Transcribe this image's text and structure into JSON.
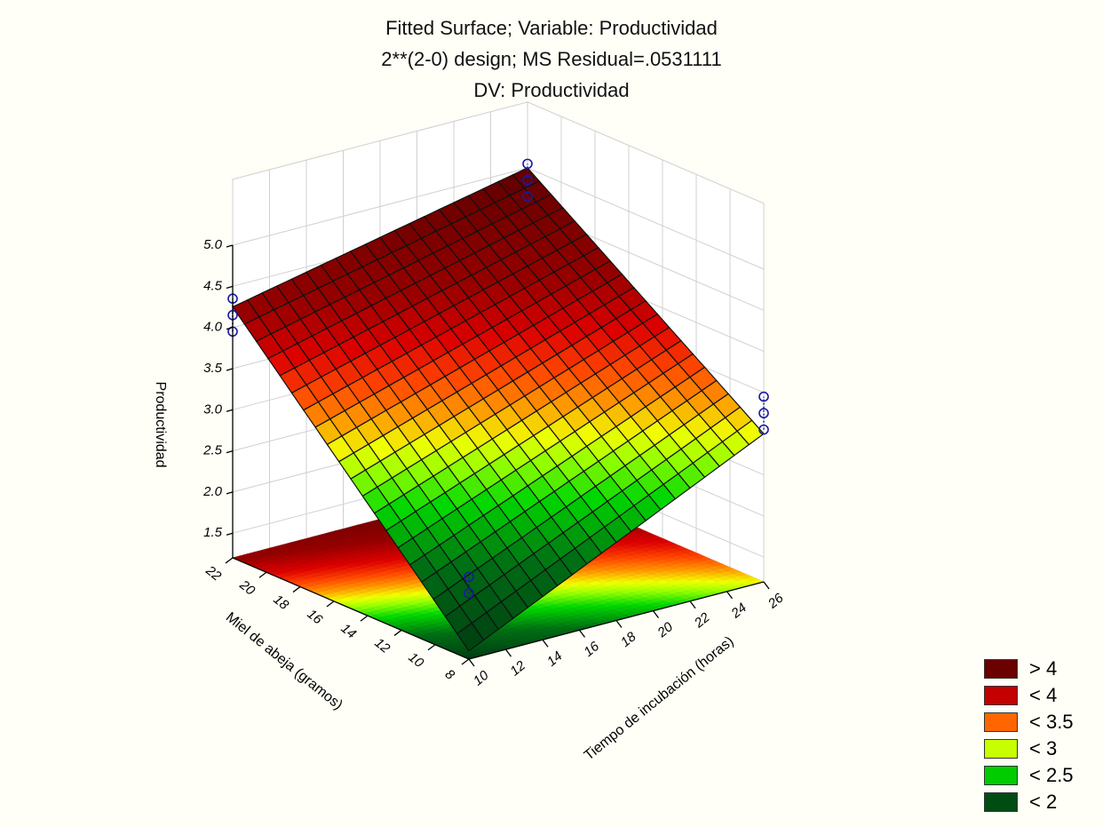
{
  "chart_data": {
    "type": "surface",
    "title": "Fitted Surface; Variable: Productividad",
    "subtitle": "2**(2-0) design; MS Residual=.0531111",
    "subtitle2": "DV: Productividad",
    "xlabel": "Tiempo de incubación (horas)",
    "ylabel": "Miel de abeja (gramos)",
    "zlabel": "Productividad",
    "x_ticks": [
      "10",
      "12",
      "14",
      "16",
      "18",
      "20",
      "22",
      "24",
      "26"
    ],
    "y_ticks": [
      "8",
      "10",
      "12",
      "14",
      "16",
      "18",
      "20",
      "22"
    ],
    "z_ticks": [
      "1.5",
      "2.0",
      "2.5",
      "3.0",
      "3.5",
      "4.0",
      "4.5",
      "5.0"
    ],
    "xlim": [
      10,
      26
    ],
    "ylim": [
      8,
      22
    ],
    "zlim": [
      1.2,
      5.0
    ],
    "surface_corners": [
      {
        "x": 10,
        "y": 8,
        "z": 1.3
      },
      {
        "x": 26,
        "y": 8,
        "z": 3.0
      },
      {
        "x": 10,
        "y": 22,
        "z": 4.25
      },
      {
        "x": 26,
        "y": 22,
        "z": 5.0
      }
    ],
    "observations": [
      {
        "x": 10,
        "y": 8,
        "z": [
          2.0,
          2.2
        ]
      },
      {
        "x": 26,
        "y": 8,
        "z": [
          3.05,
          3.25,
          3.45
        ]
      },
      {
        "x": 10,
        "y": 22,
        "z": [
          3.95,
          4.15,
          4.35
        ]
      },
      {
        "x": 26,
        "y": 22,
        "z": [
          4.65,
          4.85,
          5.05
        ]
      }
    ],
    "legend": [
      {
        "label": "> 4",
        "color": "#6b0000"
      },
      {
        "label": "< 4",
        "color": "#c40000"
      },
      {
        "label": "< 3.5",
        "color": "#ff6600"
      },
      {
        "label": "< 3",
        "color": "#c8ff00"
      },
      {
        "label": "< 2.5",
        "color": "#00cc00"
      },
      {
        "label": "< 2",
        "color": "#004d14"
      }
    ]
  }
}
